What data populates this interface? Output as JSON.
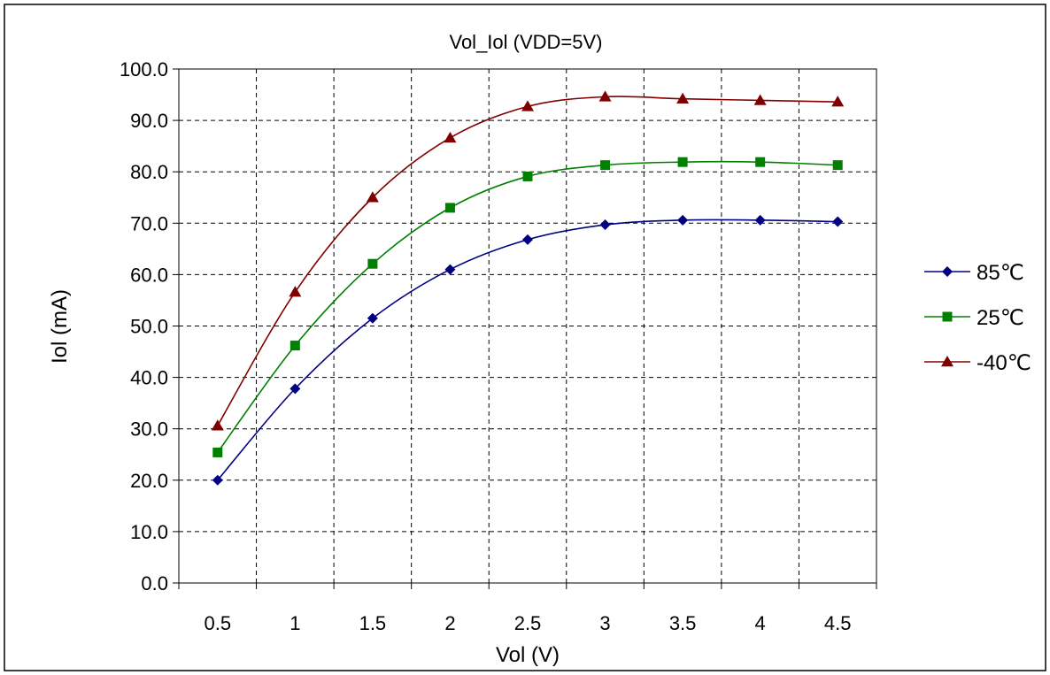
{
  "chart_data": {
    "type": "line",
    "title": "Vol_Iol (VDD=5V)",
    "xlabel": "Vol (V)",
    "ylabel": "Iol (mA)",
    "x": [
      0.5,
      1,
      1.5,
      2,
      2.5,
      3,
      3.5,
      4,
      4.5
    ],
    "x_tick_labels": [
      "0.5",
      "1",
      "1.5",
      "2",
      "2.5",
      "3",
      "3.5",
      "4",
      "4.5"
    ],
    "y_tick_labels": [
      "0.0",
      "10.0",
      "20.0",
      "30.0",
      "40.0",
      "50.0",
      "60.0",
      "70.0",
      "80.0",
      "90.0",
      "100.0"
    ],
    "ylim": [
      0,
      100
    ],
    "grid": true,
    "legend_position": "right",
    "series": [
      {
        "name": "85℃",
        "color": "#000080",
        "marker": "diamond",
        "values": [
          20.0,
          37.8,
          51.5,
          61.0,
          66.8,
          69.7,
          70.6,
          70.6,
          70.3
        ]
      },
      {
        "name": "25℃",
        "color": "#008000",
        "marker": "square",
        "values": [
          25.4,
          46.2,
          62.1,
          73.0,
          79.1,
          81.3,
          81.9,
          81.9,
          81.3
        ]
      },
      {
        "name": "-40℃",
        "color": "#800000",
        "marker": "triangle",
        "values": [
          30.6,
          56.6,
          75.0,
          86.6,
          92.7,
          94.6,
          94.2,
          93.9,
          93.6
        ]
      }
    ]
  }
}
